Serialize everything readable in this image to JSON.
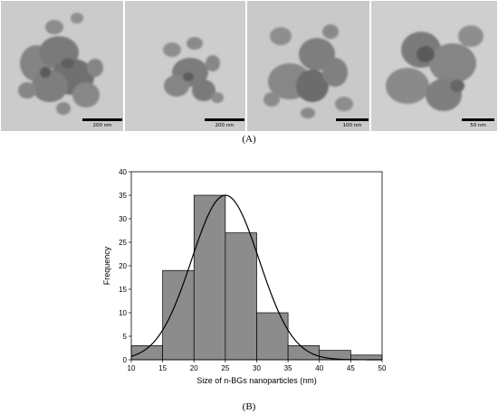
{
  "figure": {
    "panel_a_label": "(A)",
    "panel_b_label": "(B)"
  },
  "tem_images": [
    {
      "scale_bar": "200 nm"
    },
    {
      "scale_bar": "200 nm"
    },
    {
      "scale_bar": "100 nm"
    },
    {
      "scale_bar": "50 nm"
    }
  ],
  "colors": {
    "bar_fill": "#8c8c8c",
    "bar_stroke": "#000000",
    "curve": "#000000",
    "tem_background": "#c9c9c9",
    "particle_dark": "#6f6f6f",
    "particle_mid": "#8a8a8a"
  },
  "chart_data": {
    "type": "bar",
    "title": "",
    "xlabel": "Size of n-BGs nanoparticles (nm)",
    "ylabel": "Frequency",
    "xlim": [
      10,
      50
    ],
    "ylim": [
      0,
      40
    ],
    "xticks": [
      10,
      15,
      20,
      25,
      30,
      35,
      40,
      45,
      50
    ],
    "yticks": [
      0,
      5,
      10,
      15,
      20,
      25,
      30,
      35,
      40
    ],
    "bins": [
      {
        "from": 10,
        "to": 15,
        "value": 3
      },
      {
        "from": 15,
        "to": 20,
        "value": 19
      },
      {
        "from": 20,
        "to": 25,
        "value": 35
      },
      {
        "from": 25,
        "to": 30,
        "value": 27
      },
      {
        "from": 30,
        "to": 35,
        "value": 10
      },
      {
        "from": 35,
        "to": 40,
        "value": 3
      },
      {
        "from": 40,
        "to": 45,
        "value": 2
      },
      {
        "from": 45,
        "to": 50,
        "value": 1
      }
    ],
    "fit_curve": {
      "type": "normal",
      "mean": 25,
      "sd": 5.4,
      "peak": 35
    },
    "grid": false,
    "legend": "none"
  }
}
